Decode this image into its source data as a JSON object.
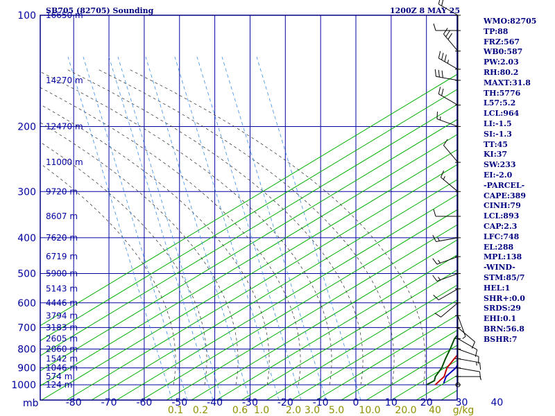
{
  "header": {
    "title": "SB705 (82705) Sounding",
    "valid_time": "1200Z  8 MAY 25"
  },
  "colors": {
    "frame": "#000080",
    "grid": "#0000a0",
    "dry_adiabat": "#00b000",
    "moist_adiabat": "#404040",
    "mixing_ratio": "#3a8ee8",
    "temperature": "#c00000",
    "dewpoint": "#005000",
    "parcel": "#0000c0",
    "wind": "#000000",
    "label_axis": "#0000a0",
    "mixing_label": "#909000"
  },
  "chart_data": {
    "type": "skew-t log-p",
    "pressure_unit": "mb",
    "pressure_levels": [
      100,
      200,
      300,
      400,
      500,
      600,
      700,
      800,
      900,
      1000
    ],
    "temperature_ticks": [
      -80,
      -70,
      -60,
      -50,
      -40,
      -30,
      -20,
      -10,
      0,
      10,
      20,
      30,
      40
    ],
    "height_labels": [
      {
        "p": 100,
        "text": "16650 m"
      },
      {
        "p": 150,
        "text": "14270 m"
      },
      {
        "p": 200,
        "text": "12470 m"
      },
      {
        "p": 250,
        "text": "11000 m"
      },
      {
        "p": 300,
        "text": "9720 m"
      },
      {
        "p": 350,
        "text": "8607 m"
      },
      {
        "p": 400,
        "text": "7620 m"
      },
      {
        "p": 450,
        "text": "6719 m"
      },
      {
        "p": 500,
        "text": "5900 m"
      },
      {
        "p": 550,
        "text": "5143 m"
      },
      {
        "p": 600,
        "text": "4446 m"
      },
      {
        "p": 650,
        "text": "3794 m"
      },
      {
        "p": 700,
        "text": "3183 m"
      },
      {
        "p": 750,
        "text": "2605 m"
      },
      {
        "p": 800,
        "text": "2060 m"
      },
      {
        "p": 850,
        "text": "1542 m"
      },
      {
        "p": 900,
        "text": "1046 m"
      },
      {
        "p": 950,
        "text": "574 m"
      },
      {
        "p": 1000,
        "text": "124 m"
      }
    ],
    "mixing_ratio_labels": [
      "0.1",
      "0.2",
      "0.6",
      "1.0",
      "2.0",
      "3.0",
      "5.0",
      "10.0",
      "20.0",
      "40",
      "g/kg"
    ],
    "temperature_profile": [
      {
        "p": 1000,
        "t": 22.5
      },
      {
        "p": 975,
        "t": 21.5
      },
      {
        "p": 950,
        "t": 20.5
      },
      {
        "p": 925,
        "t": 18.5
      },
      {
        "p": 900,
        "t": 16.5
      },
      {
        "p": 850,
        "t": 13.5
      },
      {
        "p": 800,
        "t": 10.5
      },
      {
        "p": 750,
        "t": 7.5
      },
      {
        "p": 700,
        "t": 5
      },
      {
        "p": 650,
        "t": 2
      },
      {
        "p": 600,
        "t": -1
      },
      {
        "p": 550,
        "t": -3.5
      },
      {
        "p": 510,
        "t": -5
      },
      {
        "p": 500,
        "t": -6.5
      },
      {
        "p": 450,
        "t": -11
      },
      {
        "p": 400,
        "t": -16.5
      },
      {
        "p": 350,
        "t": -22.5
      },
      {
        "p": 300,
        "t": -30.5
      },
      {
        "p": 250,
        "t": -40
      },
      {
        "p": 200,
        "t": -51.5
      },
      {
        "p": 175,
        "t": -58
      },
      {
        "p": 150,
        "t": -65
      },
      {
        "p": 135,
        "t": -70
      },
      {
        "p": 125,
        "t": -75
      },
      {
        "p": 120,
        "t": -76
      },
      {
        "p": 110,
        "t": -77
      },
      {
        "p": 100,
        "t": -81
      }
    ],
    "dewpoint_profile": [
      {
        "p": 1000,
        "t": 20
      },
      {
        "p": 975,
        "t": 20
      },
      {
        "p": 950,
        "t": 18
      },
      {
        "p": 900,
        "t": 15
      },
      {
        "p": 850,
        "t": 11
      },
      {
        "p": 800,
        "t": 7
      },
      {
        "p": 750,
        "t": 2.5
      },
      {
        "p": 700,
        "t": -1
      },
      {
        "p": 650,
        "t": -4.5
      },
      {
        "p": 600,
        "t": -7
      },
      {
        "p": 550,
        "t": -9.5
      },
      {
        "p": 520,
        "t": -11.5
      },
      {
        "p": 510,
        "t": -10.5
      },
      {
        "p": 500,
        "t": -13
      },
      {
        "p": 480,
        "t": -14
      },
      {
        "p": 450,
        "t": -22
      },
      {
        "p": 420,
        "t": -29
      },
      {
        "p": 395,
        "t": -34
      },
      {
        "p": 385,
        "t": -20
      },
      {
        "p": 370,
        "t": -31
      },
      {
        "p": 345,
        "t": -45
      },
      {
        "p": 330,
        "t": -31
      },
      {
        "p": 300,
        "t": -53
      },
      {
        "p": 270,
        "t": -49
      },
      {
        "p": 255,
        "t": -55
      },
      {
        "p": 230,
        "t": -48
      },
      {
        "p": 205,
        "t": -54
      },
      {
        "p": 180,
        "t": -59
      },
      {
        "p": 160,
        "t": -66
      },
      {
        "p": 150,
        "t": -72
      },
      {
        "p": 140,
        "t": -75
      },
      {
        "p": 125,
        "t": -82
      }
    ],
    "parcel_profile": [
      {
        "p": 990,
        "t": 24
      },
      {
        "p": 950,
        "t": 21
      },
      {
        "p": 900,
        "t": 19
      },
      {
        "p": 850,
        "t": 15.5
      },
      {
        "p": 800,
        "t": 12.5
      },
      {
        "p": 748,
        "t": 9.5
      },
      {
        "p": 700,
        "t": 6.5
      },
      {
        "p": 600,
        "t": 0
      },
      {
        "p": 500,
        "t": -6.5
      },
      {
        "p": 400,
        "t": -17
      },
      {
        "p": 300,
        "t": -31
      },
      {
        "p": 250,
        "t": -40.5
      },
      {
        "p": 200,
        "t": -52
      },
      {
        "p": 150,
        "t": -67
      },
      {
        "p": 120,
        "t": -77
      },
      {
        "p": 110,
        "t": -80
      },
      {
        "p": 105,
        "t": -81
      }
    ],
    "wind_barbs": [
      {
        "p": 100,
        "dir": 300,
        "spd": 20
      },
      {
        "p": 110,
        "dir": 270,
        "spd": 10
      },
      {
        "p": 125,
        "dir": 320,
        "spd": 30
      },
      {
        "p": 140,
        "dir": 300,
        "spd": 35
      },
      {
        "p": 150,
        "dir": 280,
        "spd": 30
      },
      {
        "p": 175,
        "dir": 300,
        "spd": 20
      },
      {
        "p": 200,
        "dir": 290,
        "spd": 15
      },
      {
        "p": 250,
        "dir": 320,
        "spd": 10
      },
      {
        "p": 300,
        "dir": 310,
        "spd": 15
      },
      {
        "p": 350,
        "dir": 270,
        "spd": 10
      },
      {
        "p": 400,
        "dir": 260,
        "spd": 15
      },
      {
        "p": 450,
        "dir": 250,
        "spd": 15
      },
      {
        "p": 500,
        "dir": 250,
        "spd": 15
      },
      {
        "p": 550,
        "dir": 240,
        "spd": 10
      },
      {
        "p": 600,
        "dir": 230,
        "spd": 10
      },
      {
        "p": 650,
        "dir": 160,
        "spd": 5
      },
      {
        "p": 700,
        "dir": 130,
        "spd": 10
      },
      {
        "p": 750,
        "dir": 120,
        "spd": 10
      },
      {
        "p": 800,
        "dir": 110,
        "spd": 10
      },
      {
        "p": 850,
        "dir": 100,
        "spd": 15
      },
      {
        "p": 900,
        "dir": 100,
        "spd": 10
      },
      {
        "p": 950,
        "dir": 90,
        "spd": 5
      },
      {
        "p": 1000,
        "dir": 0,
        "spd": 0
      }
    ]
  },
  "indices": [
    "WMO:82705",
    "TP:88",
    "FRZ:567",
    "WB0:587",
    "PW:2.03",
    "RH:80.2",
    "MAXT:31.8",
    "TH:5776",
    "L57:5.2",
    "LCL:964",
    "LI:-1.5",
    "SI:-1.3",
    "TT:45",
    "KI:37",
    "SW:233",
    "EI:-2.0",
    "-PARCEL-",
    "CAPE:389",
    "CINH:79",
    "LCL:893",
    "CAP:2.3",
    "LFC:748",
    "EL:288",
    "MPL:138",
    "-WIND-",
    "STM:85/7",
    "HEL:1",
    "SHR+:0.0",
    "SRDS:29",
    "EHI:0.1",
    "BRN:56.8",
    "BSHR:7"
  ]
}
